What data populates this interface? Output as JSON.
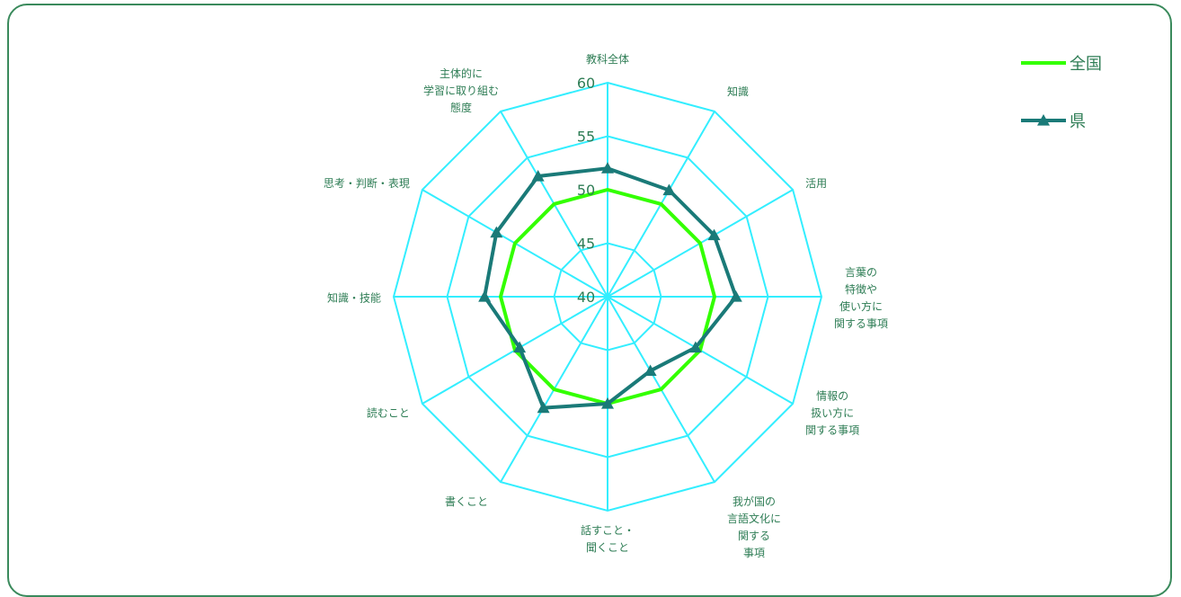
{
  "chart_data": {
    "type": "radar",
    "axes": [
      [
        "教科全体"
      ],
      [
        "知識"
      ],
      [
        "活用"
      ],
      [
        "言葉の",
        "特徴や",
        "使い方に",
        "関する事項"
      ],
      [
        "情報の",
        "扱い方に",
        "関する事項"
      ],
      [
        "我が国の",
        "言語文化に",
        "関する",
        "事項"
      ],
      [
        "話すこと・",
        "聞くこと"
      ],
      [
        "書くこと"
      ],
      [
        "読むこと"
      ],
      [
        "知識・技能"
      ],
      [
        "思考・判断・表現"
      ],
      [
        "主体的に",
        "学習に取り組む",
        "態度"
      ]
    ],
    "rlim": [
      40,
      60
    ],
    "ticks": [
      "40",
      "45",
      "50",
      "55",
      "60"
    ],
    "series": [
      {
        "name": "全国",
        "color": "#33ff00",
        "marker": "none",
        "values": [
          50,
          50,
          50,
          50,
          50,
          50,
          50,
          50,
          50,
          50,
          50,
          50
        ]
      },
      {
        "name": "県",
        "color": "#1a7a78",
        "marker": "triangle",
        "values": [
          52,
          51.5,
          51.5,
          52,
          49.5,
          48,
          50,
          52,
          49.5,
          51.5,
          52,
          53
        ]
      }
    ],
    "grid_color": "#33eeff",
    "legend": "top-right"
  }
}
